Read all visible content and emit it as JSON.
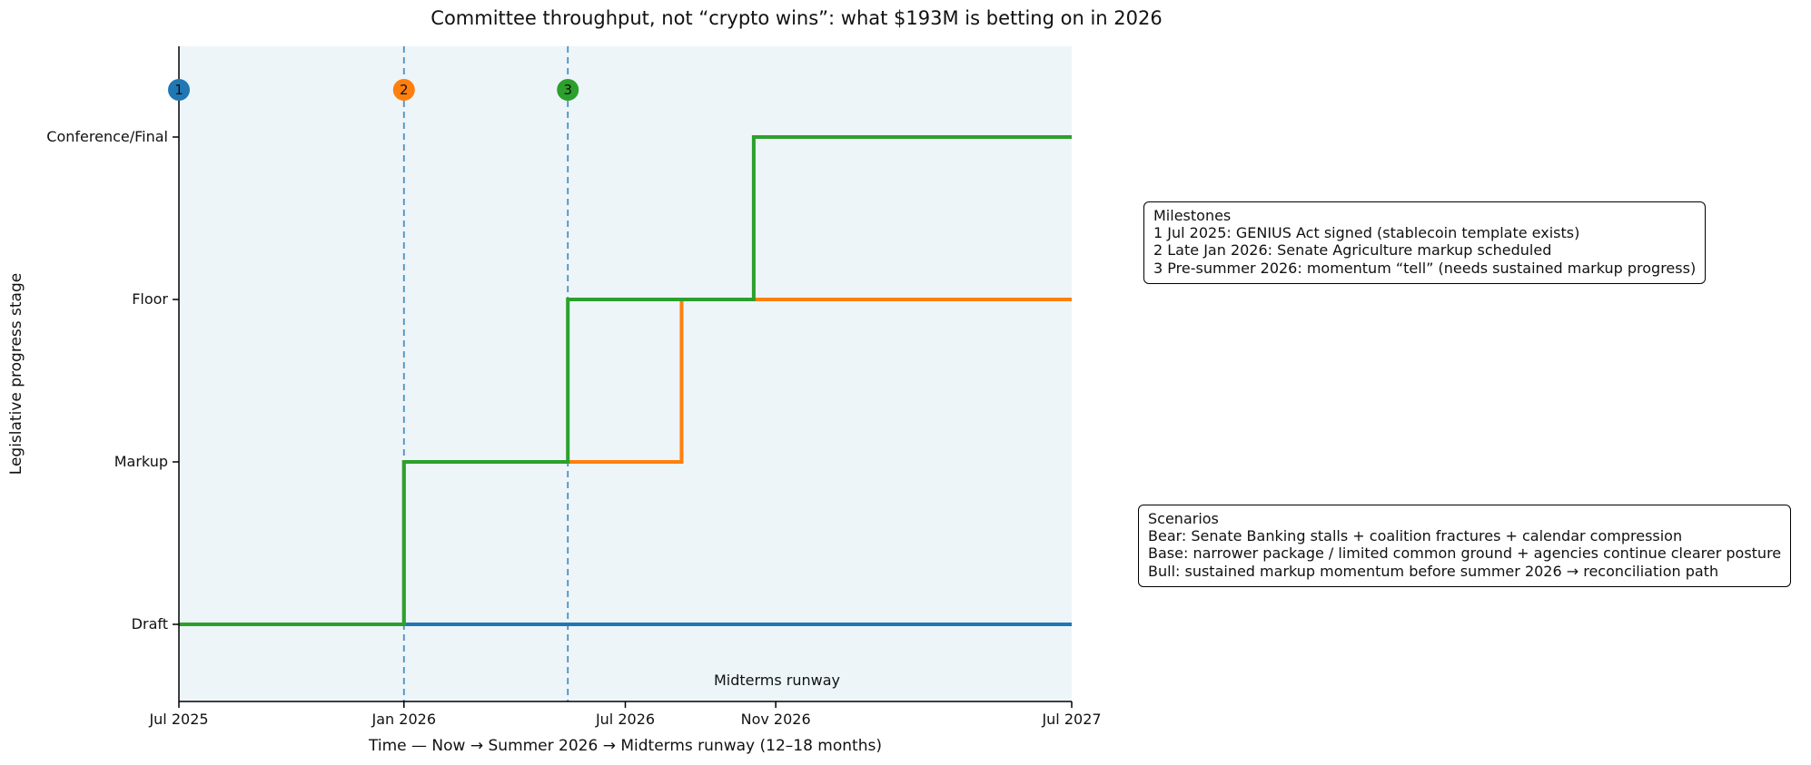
{
  "chart_data": {
    "type": "line",
    "subtype": "step",
    "title": "Committee throughput, not “crypto wins”: what $193M is betting on in 2026",
    "xlabel": "Time — Now → Summer 2026 → Midterms runway (12–18 months)",
    "ylabel": "Legislative progress stage",
    "plot_bg": "#edf5f9",
    "vline_color": "#4a90c2",
    "x_unit": "days since Jul 2025",
    "x_range_days": [
      0,
      730
    ],
    "x_ticks": [
      {
        "label": "Jul 2025",
        "t": 0
      },
      {
        "label": "Jan 2026",
        "t": 184
      },
      {
        "label": "Jul 2026",
        "t": 365
      },
      {
        "label": "Nov 2026",
        "t": 488
      },
      {
        "label": "Jul 2027",
        "t": 730
      }
    ],
    "y_categories": [
      "Draft",
      "Markup",
      "Floor",
      "Conference/Final"
    ],
    "series": [
      {
        "name": "Bear",
        "color": "#1f77b4",
        "points": [
          [
            0,
            0
          ],
          [
            730,
            0
          ]
        ]
      },
      {
        "name": "Base",
        "color": "#ff7f0e",
        "points": [
          [
            0,
            0
          ],
          [
            184,
            0
          ],
          [
            184,
            1
          ],
          [
            411,
            1
          ],
          [
            411,
            2
          ],
          [
            730,
            2
          ]
        ]
      },
      {
        "name": "Bull",
        "color": "#2ca02c",
        "points": [
          [
            0,
            0
          ],
          [
            184,
            0
          ],
          [
            184,
            1
          ],
          [
            318,
            1
          ],
          [
            318,
            2
          ],
          [
            470,
            2
          ],
          [
            470,
            3
          ],
          [
            730,
            3
          ]
        ]
      }
    ],
    "vlines": [
      184,
      318
    ],
    "milestone_markers": [
      {
        "n": "1",
        "t": 0,
        "color": "#1f77b4"
      },
      {
        "n": "2",
        "t": 184,
        "color": "#ff7f0e"
      },
      {
        "n": "3",
        "t": 318,
        "color": "#2ca02c"
      }
    ],
    "inline_label": {
      "text": "Midterms runway",
      "t": 489
    },
    "legend": "none",
    "grid": false
  },
  "annotations": {
    "milestones": {
      "heading": "Milestones",
      "items": [
        "1  Jul 2025: GENIUS Act signed (stablecoin template exists)",
        "2  Late Jan 2026: Senate Agriculture markup scheduled",
        "3  Pre-summer 2026: momentum “tell” (needs sustained markup progress)"
      ]
    },
    "scenarios": {
      "heading": "Scenarios",
      "items": [
        "Bear: Senate Banking stalls + coalition fractures + calendar compression",
        "Base: narrower package / limited common ground + agencies continue clearer posture",
        "Bull: sustained markup momentum before summer 2026 → reconciliation path"
      ]
    }
  }
}
